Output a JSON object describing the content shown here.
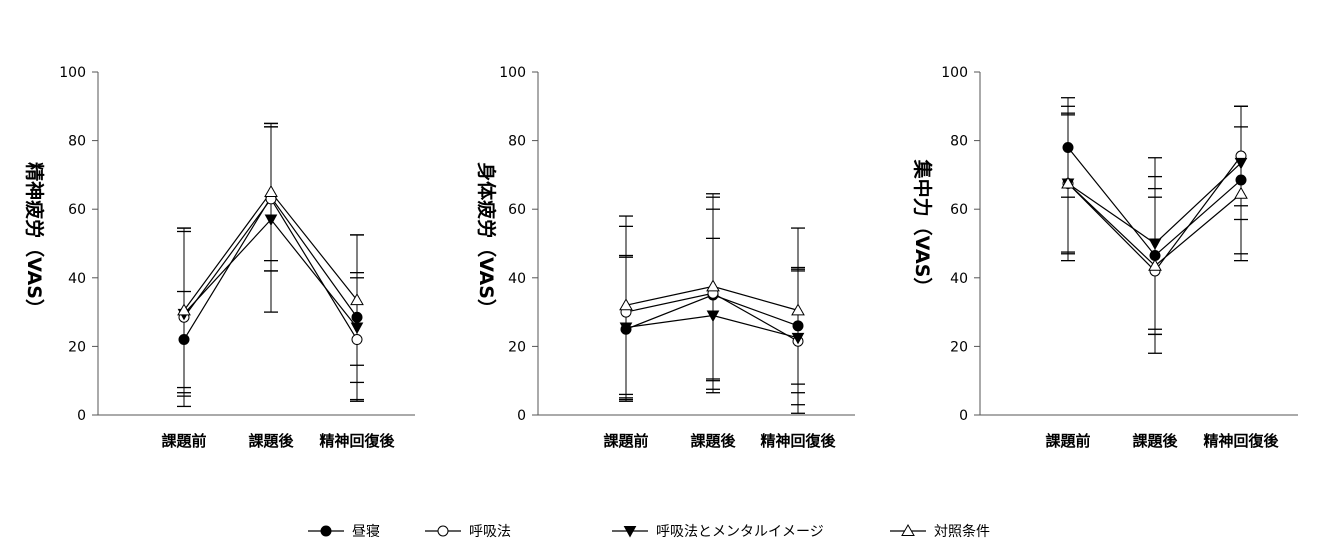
{
  "chart_data": [
    {
      "type": "line",
      "ylabel": "精神疲労（VAS）",
      "ylim": [
        0,
        100
      ],
      "yticks": [
        0,
        20,
        40,
        60,
        80,
        100
      ],
      "categories": [
        "課題前",
        "課題後",
        "精神回復後"
      ],
      "series": [
        {
          "name": "昼寝",
          "values": [
            22,
            63.5,
            28.5
          ],
          "err": [
            14,
            21.5,
            24
          ]
        },
        {
          "name": "呼吸法",
          "values": [
            28.5,
            63,
            22
          ],
          "err": [
            26,
            21,
            18
          ]
        },
        {
          "name": "呼吸法とメンタルイメージ",
          "values": [
            29.5,
            57,
            25.5
          ],
          "err": [
            24,
            27,
            16
          ]
        },
        {
          "name": "対照条件",
          "values": [
            30.5,
            65,
            33.5
          ],
          "err": [
            24,
            20,
            19
          ]
        }
      ]
    },
    {
      "type": "line",
      "ylabel": "身体疲労（VAS）",
      "ylim": [
        0,
        100
      ],
      "yticks": [
        0,
        20,
        40,
        60,
        80,
        100
      ],
      "categories": [
        "課題前",
        "課題後",
        "精神回復後"
      ],
      "series": [
        {
          "name": "昼寝",
          "values": [
            25,
            35,
            26
          ],
          "err": [
            21,
            25,
            17
          ]
        },
        {
          "name": "呼吸法",
          "values": [
            30,
            35.5,
            21.5
          ],
          "err": [
            25,
            28,
            21
          ]
        },
        {
          "name": "呼吸法とメンタルイメージ",
          "values": [
            25.5,
            29,
            22.5
          ],
          "err": [
            21,
            22.5,
            19.5
          ]
        },
        {
          "name": "対照条件",
          "values": [
            32,
            37.5,
            30.5
          ],
          "err": [
            26,
            27,
            24
          ]
        }
      ]
    },
    {
      "type": "line",
      "ylabel": "集中力（VAS）",
      "ylim": [
        0,
        100
      ],
      "yticks": [
        0,
        20,
        40,
        60,
        80,
        100
      ],
      "categories": [
        "課題前",
        "課題後",
        "精神回復後"
      ],
      "series": [
        {
          "name": "昼寝",
          "values": [
            78,
            46.5,
            68.5
          ],
          "err": [
            14.5,
            23,
            21.5
          ]
        },
        {
          "name": "呼吸法",
          "values": [
            67.5,
            42,
            75.5
          ],
          "err": [
            20,
            24,
            14.5
          ]
        },
        {
          "name": "呼吸法とメンタルイメージ",
          "values": [
            67.5,
            50,
            73.5
          ],
          "err": [
            20.5,
            25,
            16.5
          ]
        },
        {
          "name": "対照条件",
          "values": [
            67.5,
            43.5,
            64.5
          ],
          "err": [
            22.5,
            20,
            19.5
          ]
        }
      ]
    }
  ],
  "legend": {
    "placement": "bottom",
    "items": [
      {
        "label": "昼寝",
        "marker": "filled-circle"
      },
      {
        "label": "呼吸法",
        "marker": "open-circle"
      },
      {
        "label": "呼吸法とメンタルイメージ",
        "marker": "filled-triangle-down"
      },
      {
        "label": "対照条件",
        "marker": "open-triangle-up"
      }
    ]
  },
  "colors": {
    "ink": "#000000",
    "background": "#ffffff"
  }
}
